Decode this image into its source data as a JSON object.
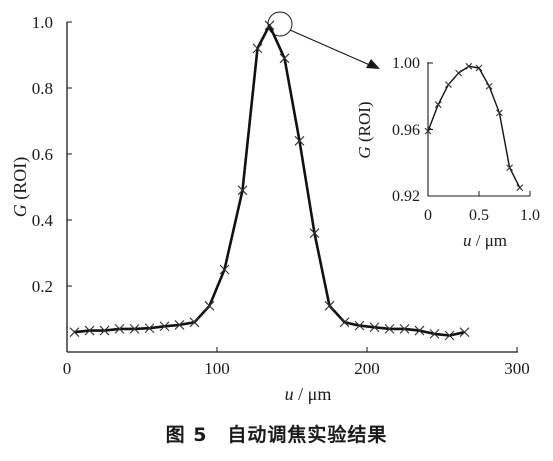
{
  "caption": "图 5　自动调焦实验结果",
  "chart_data": [
    {
      "type": "line",
      "markers": "x",
      "xlabel_var": "u",
      "xlabel_unit": " / μm",
      "ylabel_var": "G",
      "ylabel_unit": " (ROI)",
      "xlim": [
        0,
        300
      ],
      "ylim": [
        0,
        1.0
      ],
      "xticks": [
        0,
        100,
        200,
        300
      ],
      "yticks": [
        0.2,
        0.4,
        0.6,
        0.8,
        1.0
      ],
      "xtick_labels": [
        "0",
        "100",
        "200",
        "300"
      ],
      "ytick_labels": [
        "0.2",
        "0.4",
        "0.6",
        "0.8",
        "1.0"
      ],
      "grid": false,
      "series": [
        {
          "x": [
            5,
            15,
            25,
            35,
            45,
            55,
            65,
            75,
            85,
            95,
            105,
            117,
            127,
            135,
            145,
            155,
            165,
            175,
            185,
            195,
            205,
            215,
            225,
            235,
            245,
            255,
            265
          ],
          "y": [
            0.06,
            0.065,
            0.065,
            0.07,
            0.07,
            0.072,
            0.078,
            0.082,
            0.09,
            0.14,
            0.25,
            0.49,
            0.92,
            0.99,
            0.89,
            0.64,
            0.36,
            0.14,
            0.09,
            0.08,
            0.075,
            0.07,
            0.07,
            0.065,
            0.055,
            0.05,
            0.06
          ]
        }
      ]
    },
    {
      "type": "line",
      "markers": "x",
      "xlabel_var": "u",
      "xlabel_unit": " / μm",
      "ylabel_var": "G",
      "ylabel_unit": " (ROI)",
      "xlim": [
        0,
        1.0
      ],
      "ylim": [
        0.92,
        1.0
      ],
      "xticks": [
        0,
        0.5,
        1.0
      ],
      "yticks": [
        0.92,
        0.96,
        1.0
      ],
      "xtick_labels": [
        "0",
        "0.5",
        "1.0"
      ],
      "ytick_labels": [
        "0.92",
        "0.96",
        "1.00"
      ],
      "grid": false,
      "series": [
        {
          "x": [
            0.0,
            0.1,
            0.2,
            0.3,
            0.4,
            0.5,
            0.6,
            0.7,
            0.8,
            0.9
          ],
          "y": [
            0.959,
            0.975,
            0.987,
            0.994,
            0.998,
            0.997,
            0.986,
            0.97,
            0.937,
            0.925
          ]
        }
      ]
    }
  ]
}
